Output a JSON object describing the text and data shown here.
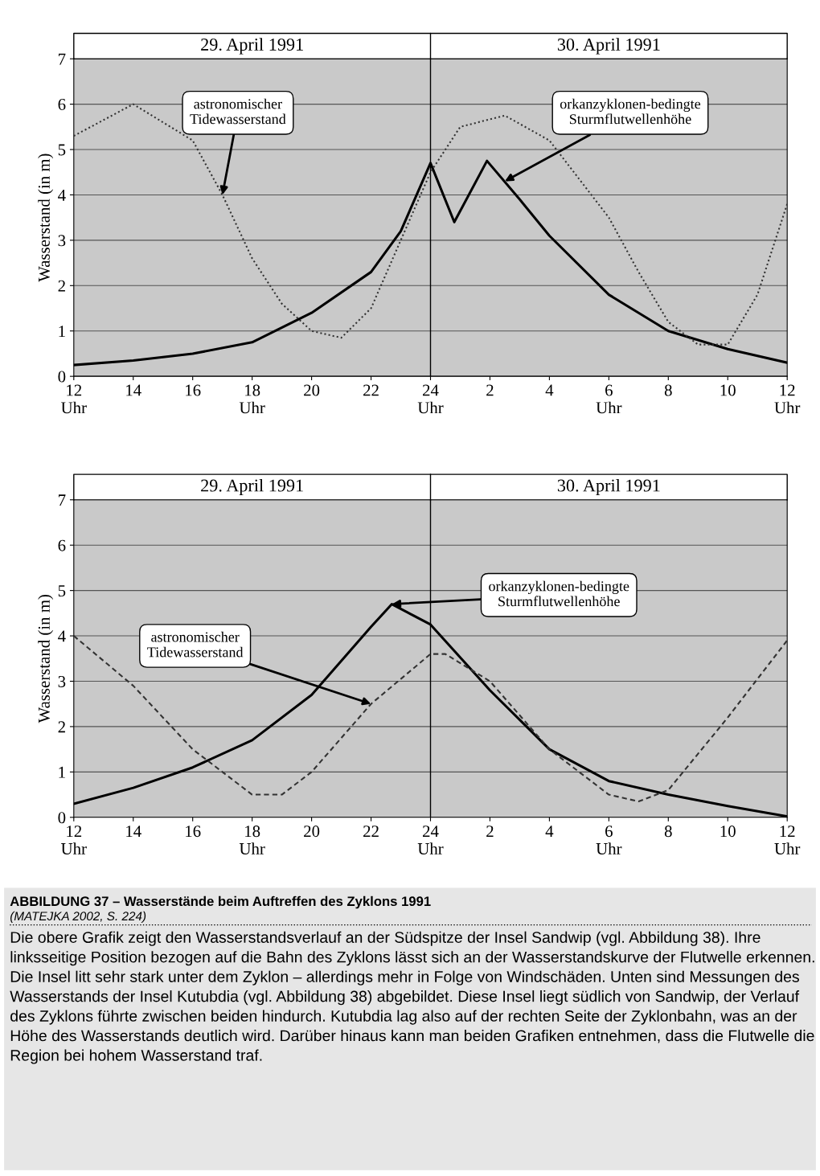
{
  "chart_data": [
    {
      "type": "line",
      "ylabel": "Wasserstand (in m)",
      "x": [
        "1991-04-29T12:00",
        "1991-04-29T14:00",
        "1991-04-29T16:00",
        "1991-04-29T18:00",
        "1991-04-29T20:00",
        "1991-04-29T22:00",
        "1991-04-29T23:00",
        "1991-04-30T00:00",
        "1991-04-30T00:48",
        "1991-04-30T01:54",
        "1991-04-30T03:00",
        "1991-04-30T04:00",
        "1991-04-30T06:00",
        "1991-04-30T08:00",
        "1991-04-30T10:00",
        "1991-04-30T12:00"
      ],
      "series": [
        {
          "color": "#000000",
          "line_style": "solid",
          "values": [
            0.25,
            0.35,
            0.5,
            0.75,
            1.4,
            2.3,
            3.2,
            4.7,
            3.4,
            4.75,
            3.9,
            3.1,
            1.8,
            1.0,
            0.6,
            0.3
          ]
        },
        {
          "color": "#333333",
          "line_style": "dotted",
          "x": [
            "1991-04-29T12:00",
            "1991-04-29T14:00",
            "1991-04-29T16:00",
            "1991-04-29T17:00",
            "1991-04-29T18:00",
            "1991-04-29T19:00",
            "1991-04-29T20:00",
            "1991-04-29T21:00",
            "1991-04-29T22:00",
            "1991-04-29T23:00",
            "1991-04-30T00:00",
            "1991-04-30T01:00",
            "1991-04-30T02:30",
            "1991-04-30T04:00",
            "1991-04-30T06:00",
            "1991-04-30T07:00",
            "1991-04-30T08:00",
            "1991-04-30T09:00",
            "1991-04-30T10:00",
            "1991-04-30T11:00",
            "1991-04-30T12:00"
          ],
          "values": [
            5.3,
            6.0,
            5.2,
            4.0,
            2.6,
            1.6,
            1.0,
            0.85,
            1.5,
            3.0,
            4.5,
            5.5,
            5.75,
            5.2,
            3.5,
            2.3,
            1.2,
            0.7,
            0.7,
            1.8,
            3.8
          ]
        }
      ],
      "xlim": [
        "1991-04-29T12:00",
        "1991-04-30T12:00"
      ],
      "ylim": [
        0,
        7
      ],
      "yticks": [
        0,
        1,
        2,
        3,
        4,
        5,
        6,
        7
      ],
      "xticks": [
        {
          "value": "1991-04-29T12:00",
          "label": "12\nUhr"
        },
        {
          "value": "1991-04-29T14:00",
          "label": "14"
        },
        {
          "value": "1991-04-29T16:00",
          "label": "16"
        },
        {
          "value": "1991-04-29T18:00",
          "label": "18\nUhr"
        },
        {
          "value": "1991-04-29T20:00",
          "label": "20"
        },
        {
          "value": "1991-04-29T22:00",
          "label": "22"
        },
        {
          "value": "1991-04-30T00:00",
          "label": "24\nUhr"
        },
        {
          "value": "1991-04-30T02:00",
          "label": "2"
        },
        {
          "value": "1991-04-30T04:00",
          "label": "4"
        },
        {
          "value": "1991-04-30T06:00",
          "label": "6\nUhr"
        },
        {
          "value": "1991-04-30T08:00",
          "label": "8"
        },
        {
          "value": "1991-04-30T10:00",
          "label": "10"
        },
        {
          "value": "1991-04-30T12:00",
          "label": "12\nUhr"
        }
      ],
      "grid": "y",
      "legend": false,
      "ref_lines": [
        {
          "axis": "x",
          "value": "1991-04-30T00:00",
          "label": null
        }
      ],
      "annotations": [
        "29. April 1991",
        "30. April 1991",
        {
          "text": "astronomischer\nTidewasserstand",
          "x": "1991-04-29T17:00",
          "y": 4.0
        },
        {
          "text": "orkanzyklonen-bedingte\nSturmflutwellenhöhe",
          "x": "1991-04-30T02:30",
          "y": 4.3
        }
      ]
    },
    {
      "type": "line",
      "ylabel": "Wasserstand (in m)",
      "x": [
        "1991-04-29T12:00",
        "1991-04-29T14:00",
        "1991-04-29T16:00",
        "1991-04-29T18:00",
        "1991-04-29T20:00",
        "1991-04-29T22:00",
        "1991-04-29T22:42",
        "1991-04-30T00:00",
        "1991-04-30T02:00",
        "1991-04-30T04:00",
        "1991-04-30T06:00",
        "1991-04-30T08:00",
        "1991-04-30T10:00",
        "1991-04-30T12:00"
      ],
      "series": [
        {
          "color": "#000000",
          "line_style": "solid",
          "values": [
            0.3,
            0.65,
            1.1,
            1.7,
            2.7,
            4.2,
            4.7,
            4.25,
            2.8,
            1.5,
            0.8,
            0.5,
            0.25,
            0.02
          ]
        },
        {
          "color": "#333333",
          "line_style": "dashed",
          "x": [
            "1991-04-29T12:00",
            "1991-04-29T14:00",
            "1991-04-29T16:00",
            "1991-04-29T18:00",
            "1991-04-29T19:00",
            "1991-04-29T20:00",
            "1991-04-29T22:00",
            "1991-04-30T00:00",
            "1991-04-30T00:30",
            "1991-04-30T02:00",
            "1991-04-30T04:00",
            "1991-04-30T06:00",
            "1991-04-30T07:00",
            "1991-04-30T08:00",
            "1991-04-30T10:00",
            "1991-04-30T12:00"
          ],
          "values": [
            4.0,
            2.9,
            1.5,
            0.5,
            0.5,
            1.0,
            2.5,
            3.6,
            3.6,
            3.0,
            1.5,
            0.5,
            0.35,
            0.6,
            2.2,
            3.9
          ]
        }
      ],
      "xlim": [
        "1991-04-29T12:00",
        "1991-04-30T12:00"
      ],
      "ylim": [
        0,
        7
      ],
      "yticks": [
        0,
        1,
        2,
        3,
        4,
        5,
        6,
        7
      ],
      "xticks": [
        {
          "value": "1991-04-29T12:00",
          "label": "12\nUhr"
        },
        {
          "value": "1991-04-29T14:00",
          "label": "14"
        },
        {
          "value": "1991-04-29T16:00",
          "label": "16"
        },
        {
          "value": "1991-04-29T18:00",
          "label": "18\nUhr"
        },
        {
          "value": "1991-04-29T20:00",
          "label": "20"
        },
        {
          "value": "1991-04-29T22:00",
          "label": "22"
        },
        {
          "value": "1991-04-30T00:00",
          "label": "24\nUhr"
        },
        {
          "value": "1991-04-30T02:00",
          "label": "2"
        },
        {
          "value": "1991-04-30T04:00",
          "label": "4"
        },
        {
          "value": "1991-04-30T06:00",
          "label": "6\nUhr"
        },
        {
          "value": "1991-04-30T08:00",
          "label": "8"
        },
        {
          "value": "1991-04-30T10:00",
          "label": "10"
        },
        {
          "value": "1991-04-30T12:00",
          "label": "12\nUhr"
        }
      ],
      "grid": "y",
      "legend": false,
      "ref_lines": [
        {
          "axis": "x",
          "value": "1991-04-30T00:00",
          "label": null
        }
      ],
      "annotations": [
        "29. April 1991",
        "30. April 1991",
        {
          "text": "astronomischer\nTidewasserstand",
          "x": "1991-04-29T22:00",
          "y": 2.5
        },
        {
          "text": "orkanzyklonen-bedingte\nSturmflutwellenhöhe",
          "x": "1991-04-29T22:42",
          "y": 4.7
        },
        "ABBILDUNG 37 – Wasserstände beim Auftreffen des Zyklons 1991",
        "(MATEJKA 2002, S. 224)",
        "Die obere Grafik zeigt den Wasserstandsverlauf an der Südspitze der Insel Sandwip (vgl. Abbildung 38). Ihre linksseitige Position bezogen auf die Bahn des Zyklons lässt sich an der Wasserstandskurve der Flutwelle erkennen. Die Insel litt sehr stark unter dem Zyklon – allerdings mehr in Folge von Windschäden. Unten sind Messungen des Wasserstands der Insel Kutubdia (vgl. Abbildung 38) abgebildet. Diese Insel liegt südlich von Sandwip, der Verlauf des Zyklons führte zwischen beiden hindurch. Kutubdia lag also auf der rechten Seite der Zyklonbahn, was an der Höhe des Wasserstands deutlich wird. Darüber hinaus kann man beiden Grafiken entnehmen, dass die Flutwelle die Region bei hohem Wasserstand traf."
      ]
    }
  ]
}
